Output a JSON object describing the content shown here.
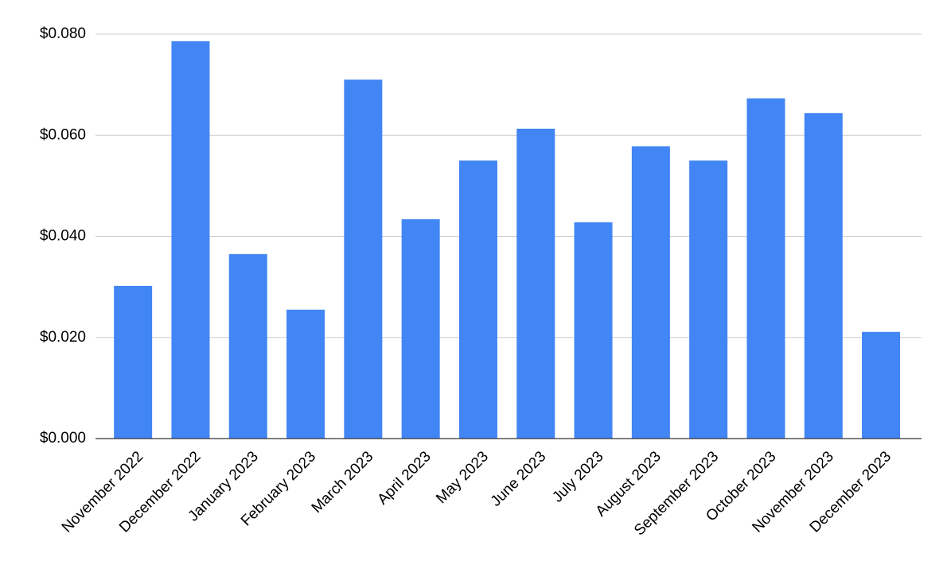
{
  "chart_data": {
    "type": "bar",
    "categories": [
      "November 2022",
      "December 2022",
      "January 2023",
      "February 2023",
      "March 2023",
      "April 2023",
      "May 2023",
      "June 2023",
      "July 2023",
      "August 2023",
      "September 2023",
      "October 2023",
      "November 2023",
      "December 2023"
    ],
    "values": [
      0.0302,
      0.0786,
      0.0365,
      0.0255,
      0.071,
      0.0434,
      0.055,
      0.0613,
      0.0428,
      0.0578,
      0.055,
      0.0673,
      0.0644,
      0.0211
    ],
    "color": "#4285f4",
    "ylim": [
      0,
      0.08
    ],
    "yticks": [
      {
        "value": 0,
        "label": "$0.000"
      },
      {
        "value": 0.02,
        "label": "$0.020"
      },
      {
        "value": 0.04,
        "label": "$0.040"
      },
      {
        "value": 0.06,
        "label": "$0.060"
      },
      {
        "value": 0.08,
        "label": "$0.080"
      }
    ],
    "grid": true
  }
}
